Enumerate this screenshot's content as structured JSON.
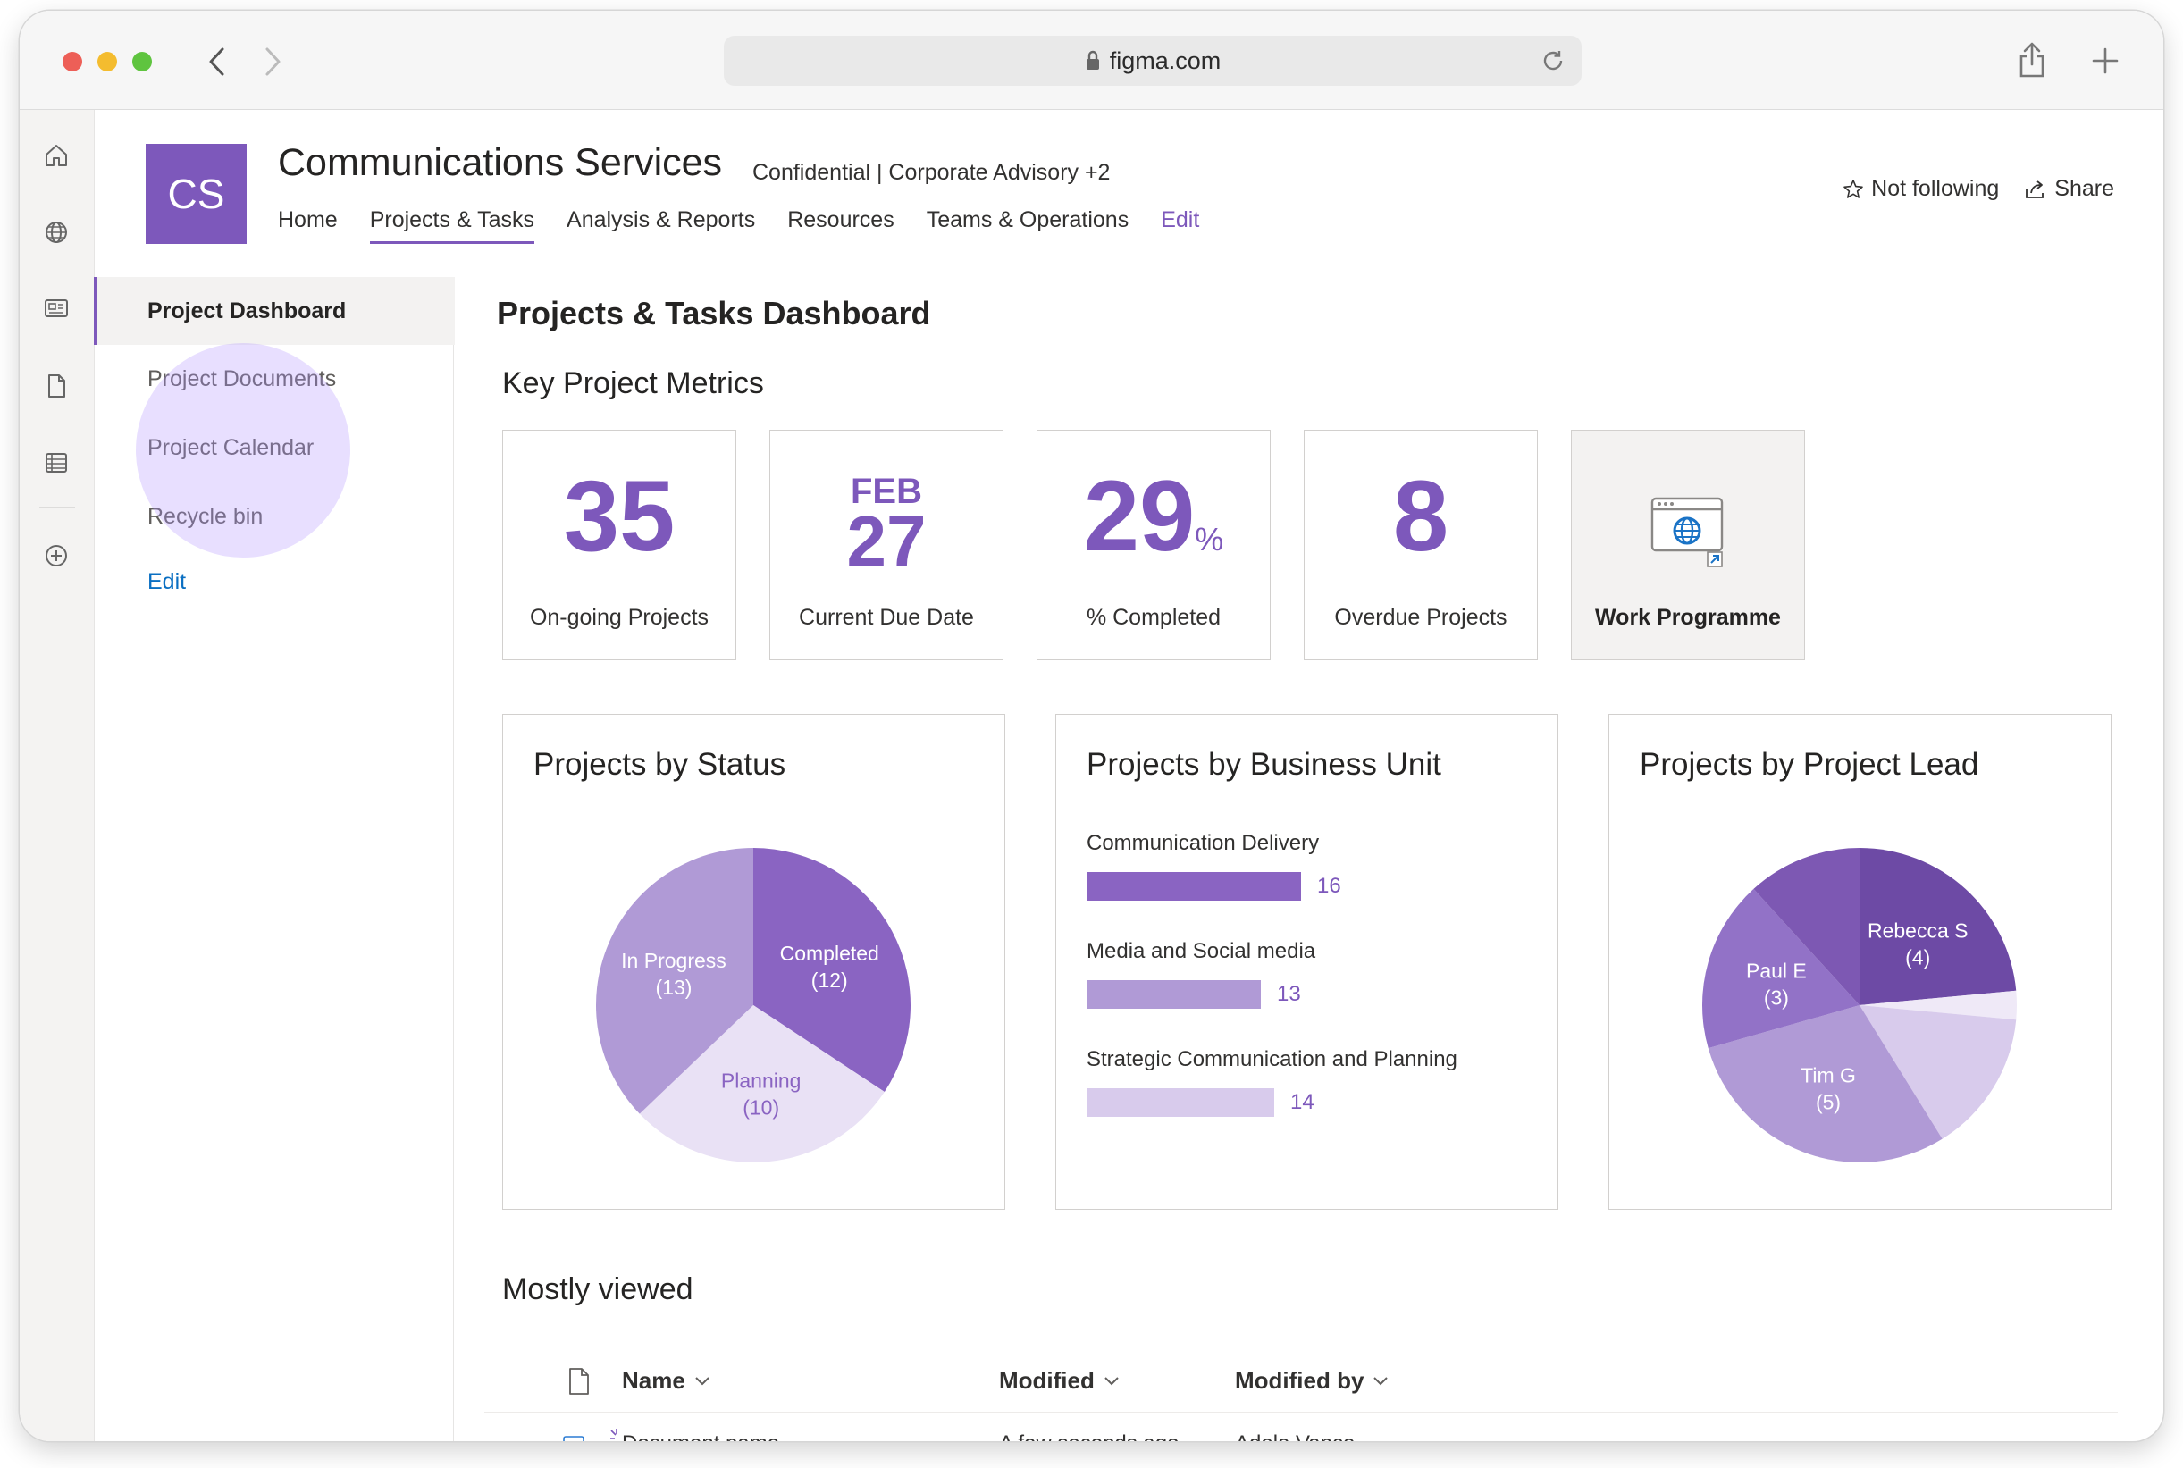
{
  "browser": {
    "url": "figma.com"
  },
  "site": {
    "logo_text": "CS",
    "title": "Communications Services",
    "meta": "Confidential  |  Corporate Advisory +2",
    "nav": [
      "Home",
      "Projects & Tasks",
      "Analysis & Reports",
      "Resources",
      "Teams & Operations"
    ],
    "nav_active": "Projects & Tasks",
    "nav_edit": "Edit",
    "follow_label": "Not following",
    "share_label": "Share",
    "accent_color": "#7d58bb"
  },
  "leftnav": {
    "items": [
      "Project Dashboard",
      "Project Documents",
      "Project Calendar",
      "Recycle bin"
    ],
    "selected": "Project Dashboard",
    "edit": "Edit"
  },
  "page": {
    "title": "Projects & Tasks Dashboard",
    "metrics_title": "Key Project Metrics",
    "metrics": {
      "ongoing": {
        "value": "35",
        "label": "On-going Projects"
      },
      "due": {
        "month": "FEB",
        "day": "27",
        "label": "Current Due Date"
      },
      "completed": {
        "value": "29",
        "unit": "%",
        "label": "% Completed"
      },
      "overdue": {
        "value": "8",
        "label": "Overdue Projects"
      },
      "work": {
        "label": "Work Programme",
        "icon": "globe-window-icon"
      }
    },
    "mostly_viewed_title": "Mostly viewed"
  },
  "charts": {
    "status_title": "Projects by Status",
    "business_title": "Projects by Business Unit",
    "lead_title": "Projects by Project Lead"
  },
  "chart_data": [
    {
      "type": "pie",
      "title": "Projects by Status",
      "categories": [
        "Completed",
        "Planning",
        "In Progress"
      ],
      "values": [
        12,
        10,
        13
      ],
      "colors": [
        "#8a64c2",
        "#e9e1f5",
        "#b09ad6"
      ]
    },
    {
      "type": "bar",
      "title": "Projects by Business Unit",
      "categories": [
        "Communication Delivery",
        "Media and Social media",
        "Strategic Communication and Planning"
      ],
      "values": [
        16,
        13,
        14
      ],
      "colors": [
        "#8a64c2",
        "#b09ad6",
        "#d8cbec"
      ]
    },
    {
      "type": "pie",
      "title": "Projects by Project Lead",
      "categories": [
        "Rebecca S",
        "",
        "",
        "Tim G",
        "Paul E",
        ""
      ],
      "display_labels": [
        "Rebecca S (4)",
        "",
        "",
        "Tim G (5)",
        "Paul E (3)",
        ""
      ],
      "values": [
        4,
        0.5,
        2.5,
        5,
        3,
        2
      ],
      "colors": [
        "#6d4aa5",
        "#efe9f7",
        "#d8cbec",
        "#b09ad6",
        "#9272c7",
        "#7d58b3"
      ]
    }
  ],
  "table": {
    "headers": [
      "Name",
      "Modified",
      "Modified by"
    ],
    "rows": [
      {
        "name": "Document name",
        "modified": "A few seconds ago",
        "modified_by": "Adele Vance"
      }
    ]
  }
}
